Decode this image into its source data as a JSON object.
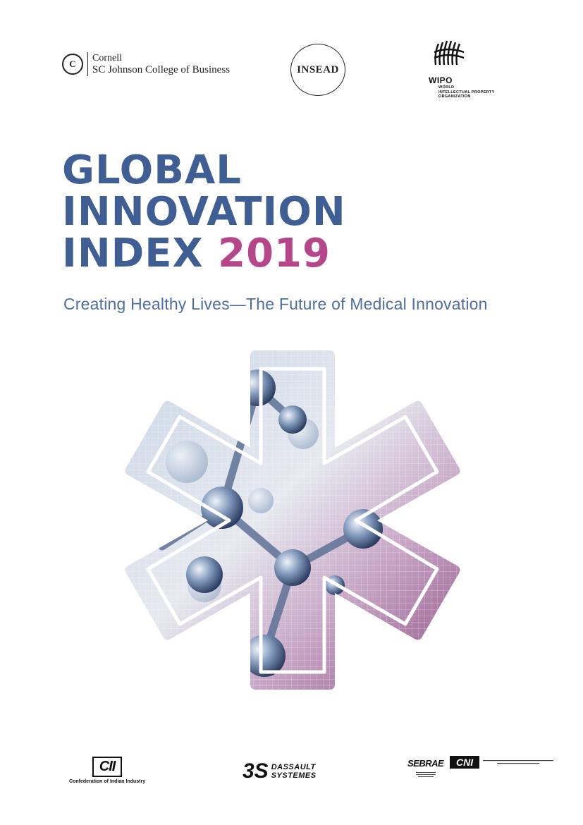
{
  "logos_top": {
    "cornell": {
      "line1": "Cornell",
      "line2": "SC Johnson College of Business",
      "seal_letter": "C"
    },
    "insead": {
      "name": "INSEAD"
    },
    "wipo": {
      "name": "WIPO",
      "sub1": "WORLD",
      "sub2": "INTELLECTUAL PROPERTY",
      "sub3": "ORGANIZATION"
    }
  },
  "title": {
    "line1": "GLOBAL",
    "line2": "INNOVATION",
    "line3": "INDEX",
    "year": "2019"
  },
  "subtitle": "Creating Healthy Lives—The Future of Medical Innovation",
  "colors": {
    "title": "#3f5f94",
    "year": "#b6468a",
    "subtitle": "#4d6ea3"
  },
  "logos_bottom": {
    "cii": {
      "name": "CII",
      "caption": "Confederation of Indian Industry"
    },
    "dassault": {
      "mark": "3S",
      "line1": "DASSAULT",
      "line2": "SYSTEMES"
    },
    "sebrae": {
      "name": "SEBRAE"
    },
    "cni": {
      "name": "CNI"
    }
  }
}
